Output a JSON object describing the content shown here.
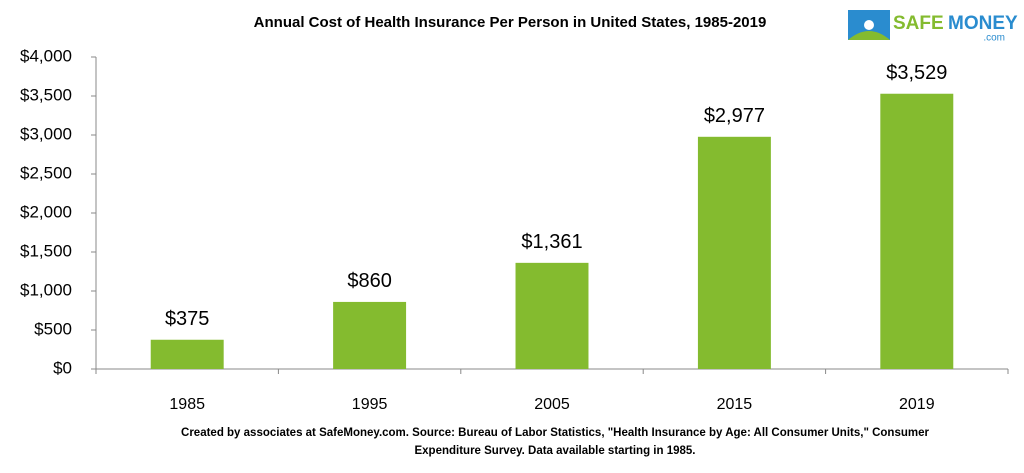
{
  "chart_data": {
    "type": "bar",
    "title": "Annual Cost of Health Insurance Per Person in United States, 1985-2019",
    "categories": [
      "1985",
      "1995",
      "2005",
      "2015",
      "2019"
    ],
    "values": [
      375,
      860,
      1361,
      2977,
      3529
    ],
    "value_labels": [
      "$375",
      "$860",
      "$1,361",
      "$2,977",
      "$3,529"
    ],
    "color": "#84bb2f",
    "ylim": [
      0,
      4000
    ],
    "yticks": [
      {
        "value": 0,
        "label": "$0"
      },
      {
        "value": 500,
        "label": "$500"
      },
      {
        "value": 1000,
        "label": "$1,000"
      },
      {
        "value": 1500,
        "label": "$1,500"
      },
      {
        "value": 2000,
        "label": "$2,000"
      },
      {
        "value": 2500,
        "label": "$2,500"
      },
      {
        "value": 3000,
        "label": "$3,000"
      },
      {
        "value": 3500,
        "label": "$3,500"
      },
      {
        "value": 4000,
        "label": "$4,000"
      }
    ],
    "grid": false,
    "logo": {
      "safe": "SAFE",
      "money": "MONEY",
      "domain": ".com"
    },
    "source": [
      "Created by associates at SafeMoney.com. Source: Bureau of Labor Statistics, \"Health Insurance by Age: All Consumer Units,\" Consumer",
      "Expenditure Survey. Data available starting in 1985."
    ]
  }
}
